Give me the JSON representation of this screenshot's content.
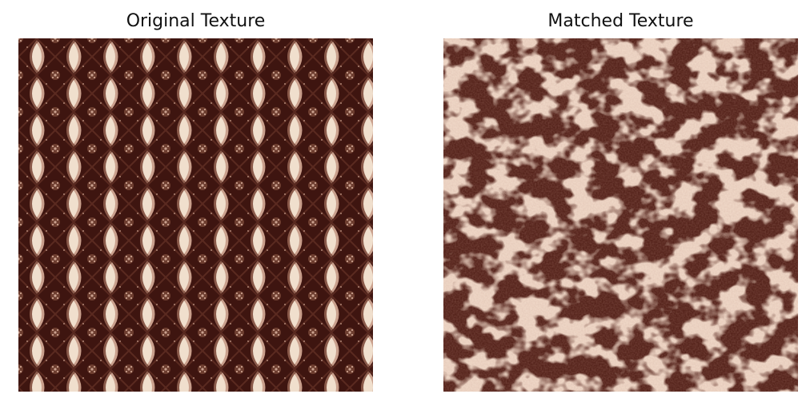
{
  "panels": [
    {
      "title": "Original Texture"
    },
    {
      "title": "Matched Texture"
    }
  ],
  "colors": {
    "background": "#ffffff",
    "dark_brown": "#3e1510",
    "mid_brown": "#8a5a4a",
    "light_brown": "#c99f8c",
    "cream": "#f0dfcd"
  }
}
